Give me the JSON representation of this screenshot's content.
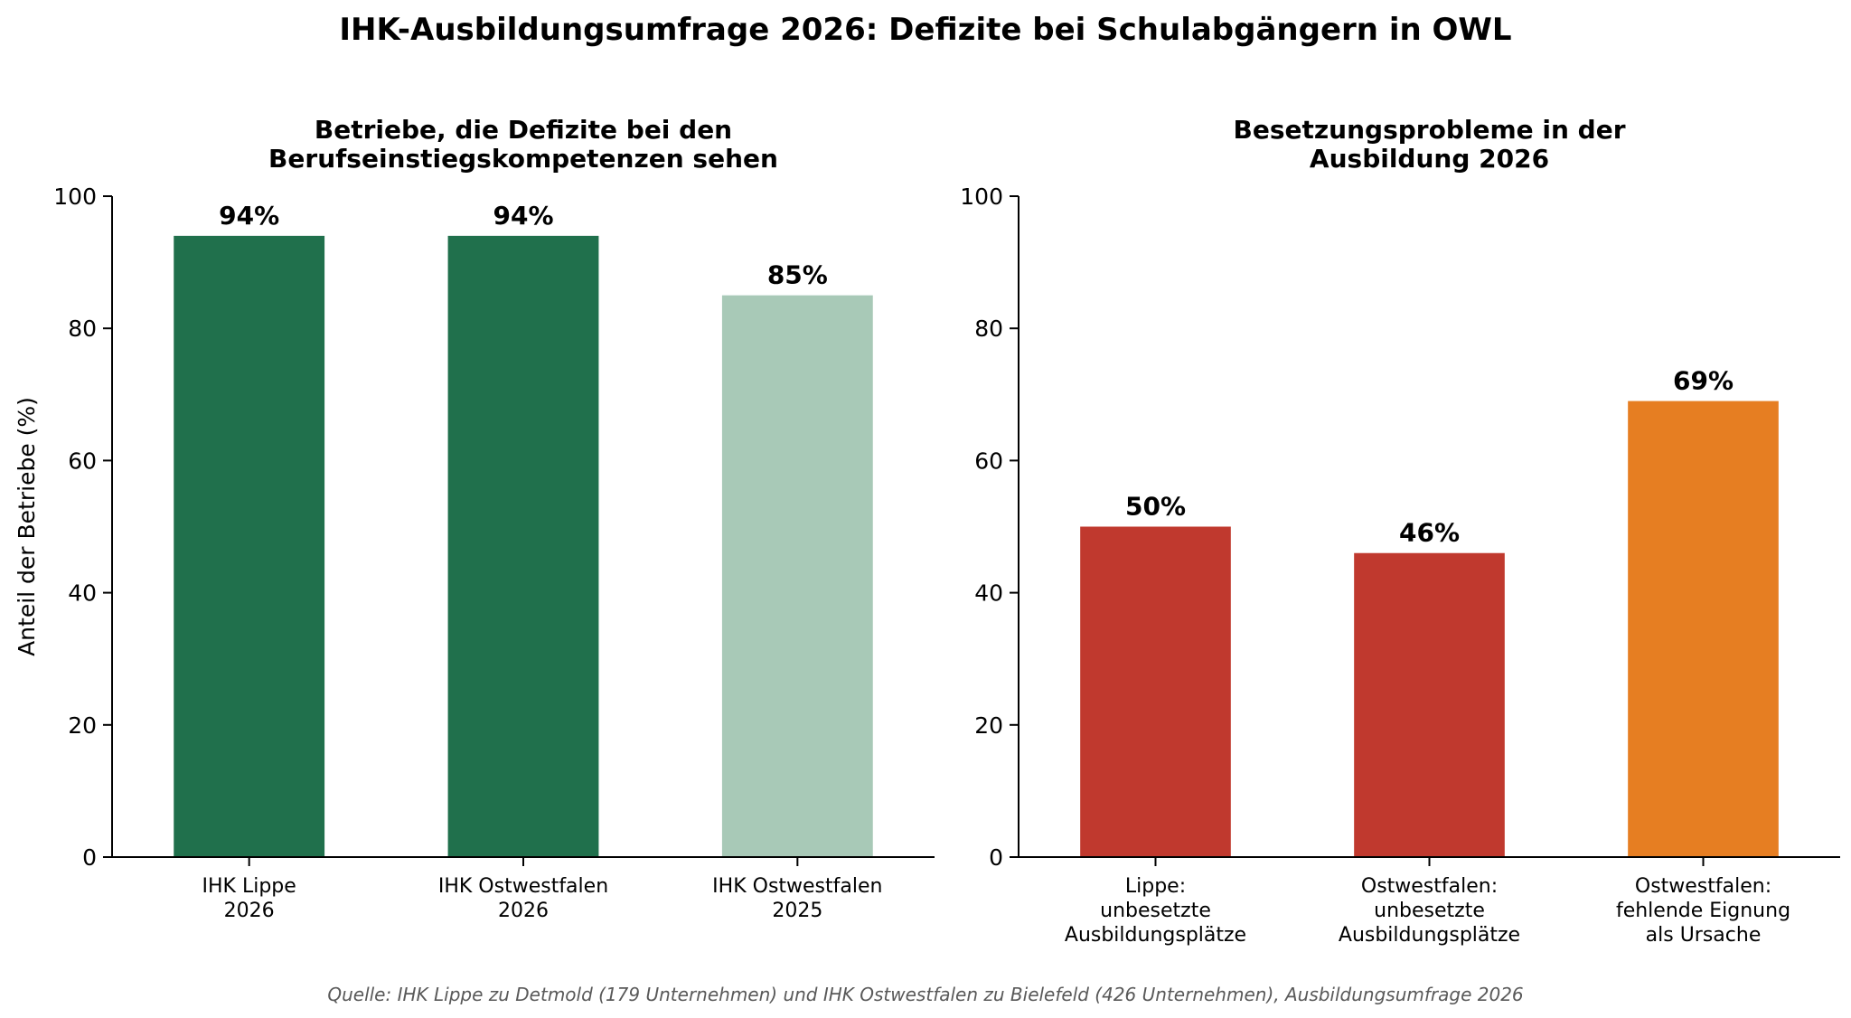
{
  "title": "IHK-Ausbildungsumfrage 2026: Defizite bei Schulabgängern in OWL",
  "source": "Quelle: IHK Lippe zu Detmold (179 Unternehmen) und IHK Ostwestfalen zu Bielefeld (426 Unternehmen), Ausbildungsumfrage 2026",
  "chart_data": [
    {
      "type": "bar",
      "title": "Betriebe, die Defizite bei den Berufseinstiegskompetenzen sehen",
      "title_lines": [
        "Betriebe, die Defizite bei den",
        "Berufseinstiegskompetenzen sehen"
      ],
      "ylabel": "Anteil der Betriebe (%)",
      "xlabel": "",
      "ylim": [
        0,
        100
      ],
      "yticks": [
        0,
        20,
        40,
        60,
        80,
        100
      ],
      "categories": [
        "IHK Lippe 2026",
        "IHK Ostwestfalen 2026",
        "IHK Ostwestfalen 2025"
      ],
      "category_lines": [
        [
          "IHK Lippe",
          "2026"
        ],
        [
          "IHK Ostwestfalen",
          "2026"
        ],
        [
          "IHK Ostwestfalen",
          "2025"
        ]
      ],
      "values": [
        94,
        94,
        85
      ],
      "value_labels": [
        "94%",
        "94%",
        "85%"
      ],
      "colors": [
        "#20704c",
        "#20704c",
        "#a8c9b7"
      ],
      "grid": false
    },
    {
      "type": "bar",
      "title": "Besetzungsprobleme in der Ausbildung 2026",
      "title_lines": [
        "Besetzungsprobleme in der",
        "Ausbildung 2026"
      ],
      "ylabel": "",
      "xlabel": "",
      "ylim": [
        0,
        100
      ],
      "yticks": [
        0,
        20,
        40,
        60,
        80,
        100
      ],
      "categories": [
        "Lippe: unbesetzte Ausbildungsplätze",
        "Ostwestfalen: unbesetzte Ausbildungsplätze",
        "Ostwestfalen: fehlende Eignung als Ursache"
      ],
      "category_lines": [
        [
          "Lippe:",
          "unbesetzte",
          "Ausbildungsplätze"
        ],
        [
          "Ostwestfalen:",
          "unbesetzte",
          "Ausbildungsplätze"
        ],
        [
          "Ostwestfalen:",
          "fehlende Eignung",
          "als Ursache"
        ]
      ],
      "values": [
        50,
        46,
        69
      ],
      "value_labels": [
        "50%",
        "46%",
        "69%"
      ],
      "colors": [
        "#c0392e",
        "#c0392e",
        "#e67e22"
      ],
      "grid": false
    }
  ]
}
